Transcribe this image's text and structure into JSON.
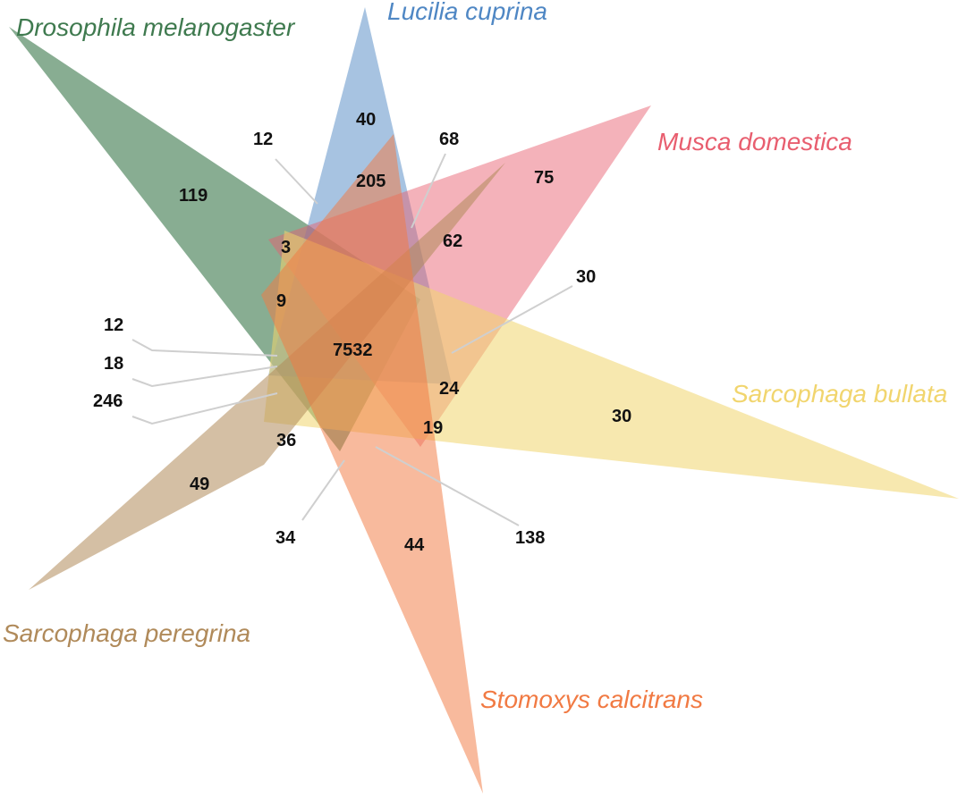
{
  "diagram": {
    "type": "venn-6-triangles",
    "sets": [
      {
        "name": "Drosophila melanogaster",
        "color": "#3f7a4f"
      },
      {
        "name": "Lucilia cuprina",
        "color": "#4f87c4"
      },
      {
        "name": "Musca domestica",
        "color": "#e85e6f"
      },
      {
        "name": "Sarcophaga bullata",
        "color": "#f1d56e"
      },
      {
        "name": "Sarcophaga peregrina",
        "color": "#b08a5a"
      },
      {
        "name": "Stomoxys calcitrans",
        "color": "#f17a43"
      }
    ],
    "counts": {
      "drosophila_only": "119",
      "lucilia_only": "40",
      "musca_only": "75",
      "bullata_only": "30",
      "peregrina_only": "49",
      "stomoxys_only": "44",
      "all_six": "7532",
      "c205": "205",
      "c62": "62",
      "c3": "3",
      "c9": "9",
      "c24": "24",
      "c19": "19",
      "c36": "36",
      "c12_top": "12",
      "c68": "68",
      "c30_callout": "30",
      "c12_left": "12",
      "c18": "18",
      "c246": "246",
      "c34": "34",
      "c138": "138"
    }
  }
}
